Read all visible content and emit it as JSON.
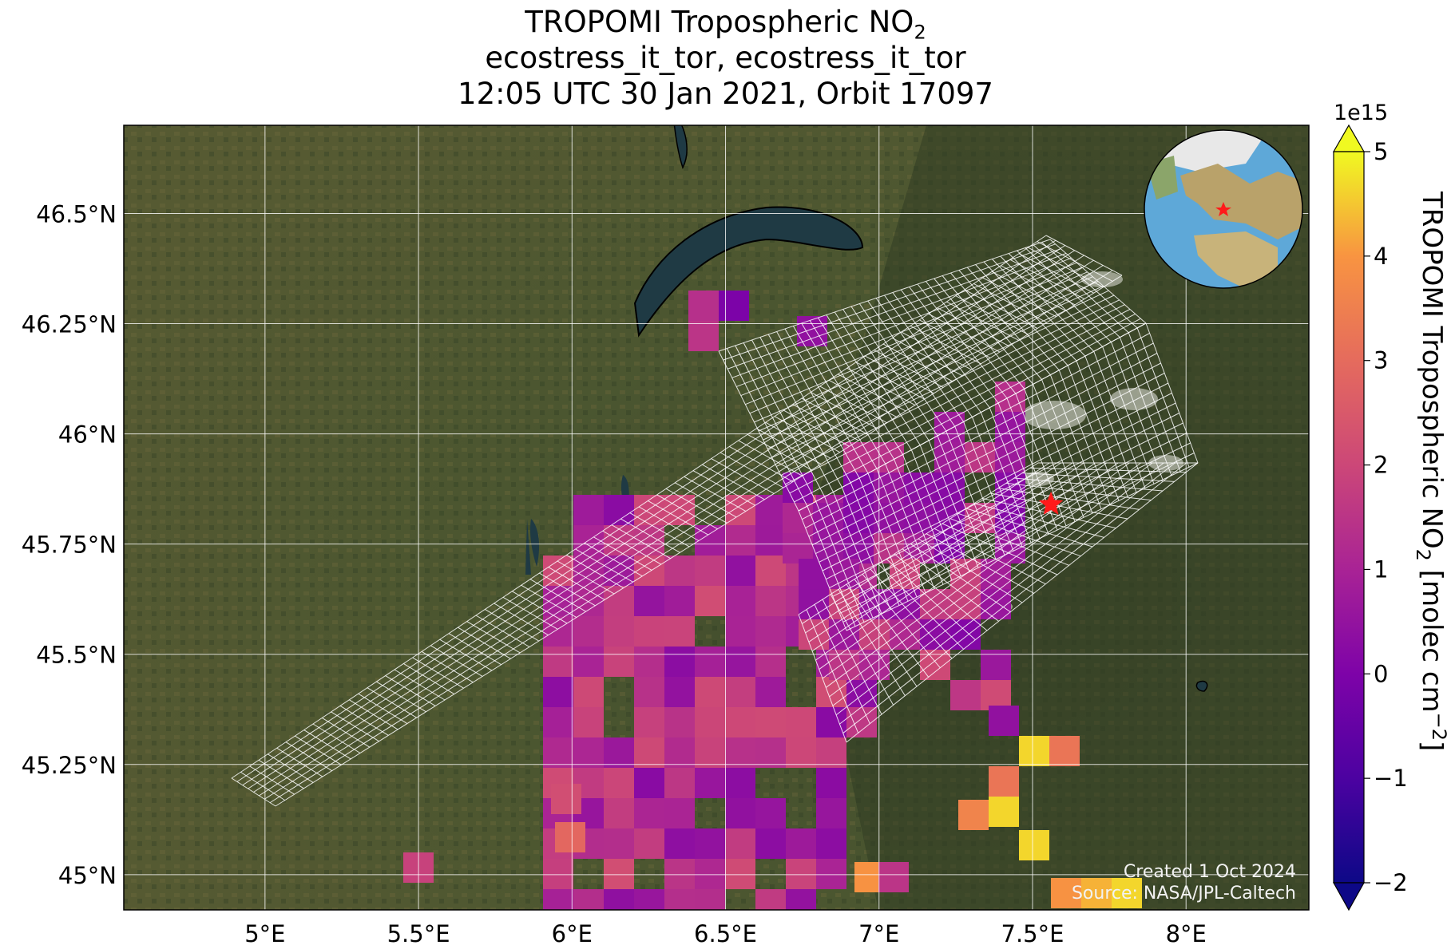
{
  "title": {
    "line1": "TROPOMI Tropospheric NO",
    "line1_sub": "2",
    "line2": "ecostress_it_tor, ecostress_it_tor",
    "line3": "12:05 UTC 30 Jan 2021, Orbit 17097"
  },
  "map": {
    "lon_range": [
      4.54,
      8.4
    ],
    "lat_range": [
      44.92,
      46.7
    ],
    "lon_ticks": [
      "5°E",
      "5.5°E",
      "6°E",
      "6.5°E",
      "7°E",
      "7.5°E",
      "8°E"
    ],
    "lat_ticks": [
      "46.5°N",
      "46.25°N",
      "46°N",
      "45.75°N",
      "45.5°N",
      "45.25°N",
      "45°N"
    ],
    "site_marker": {
      "lon": 7.56,
      "lat": 45.84,
      "color": "#ff1a1a"
    },
    "inset_globe": "globe-inset"
  },
  "colorbar": {
    "exponent": "1e15",
    "label": "TROPOMI Tropospheric NO",
    "label_sub": "2",
    "label_units": " [molec cm",
    "label_sup": "−2",
    "label_end": "]",
    "min": -2,
    "max": 5,
    "ticks": [
      "−2",
      "−1",
      "0",
      "1",
      "2",
      "3",
      "4",
      "5"
    ],
    "colormap": "plasma"
  },
  "credits": {
    "created": "Created 1 Oct 2024",
    "source": "Source: NASA/JPL-Caltech"
  },
  "colors": {
    "background_dark": "#3b4a2a",
    "lake": "#1f3a44",
    "grid": "#ffffff",
    "footprint": "#ffffff"
  }
}
